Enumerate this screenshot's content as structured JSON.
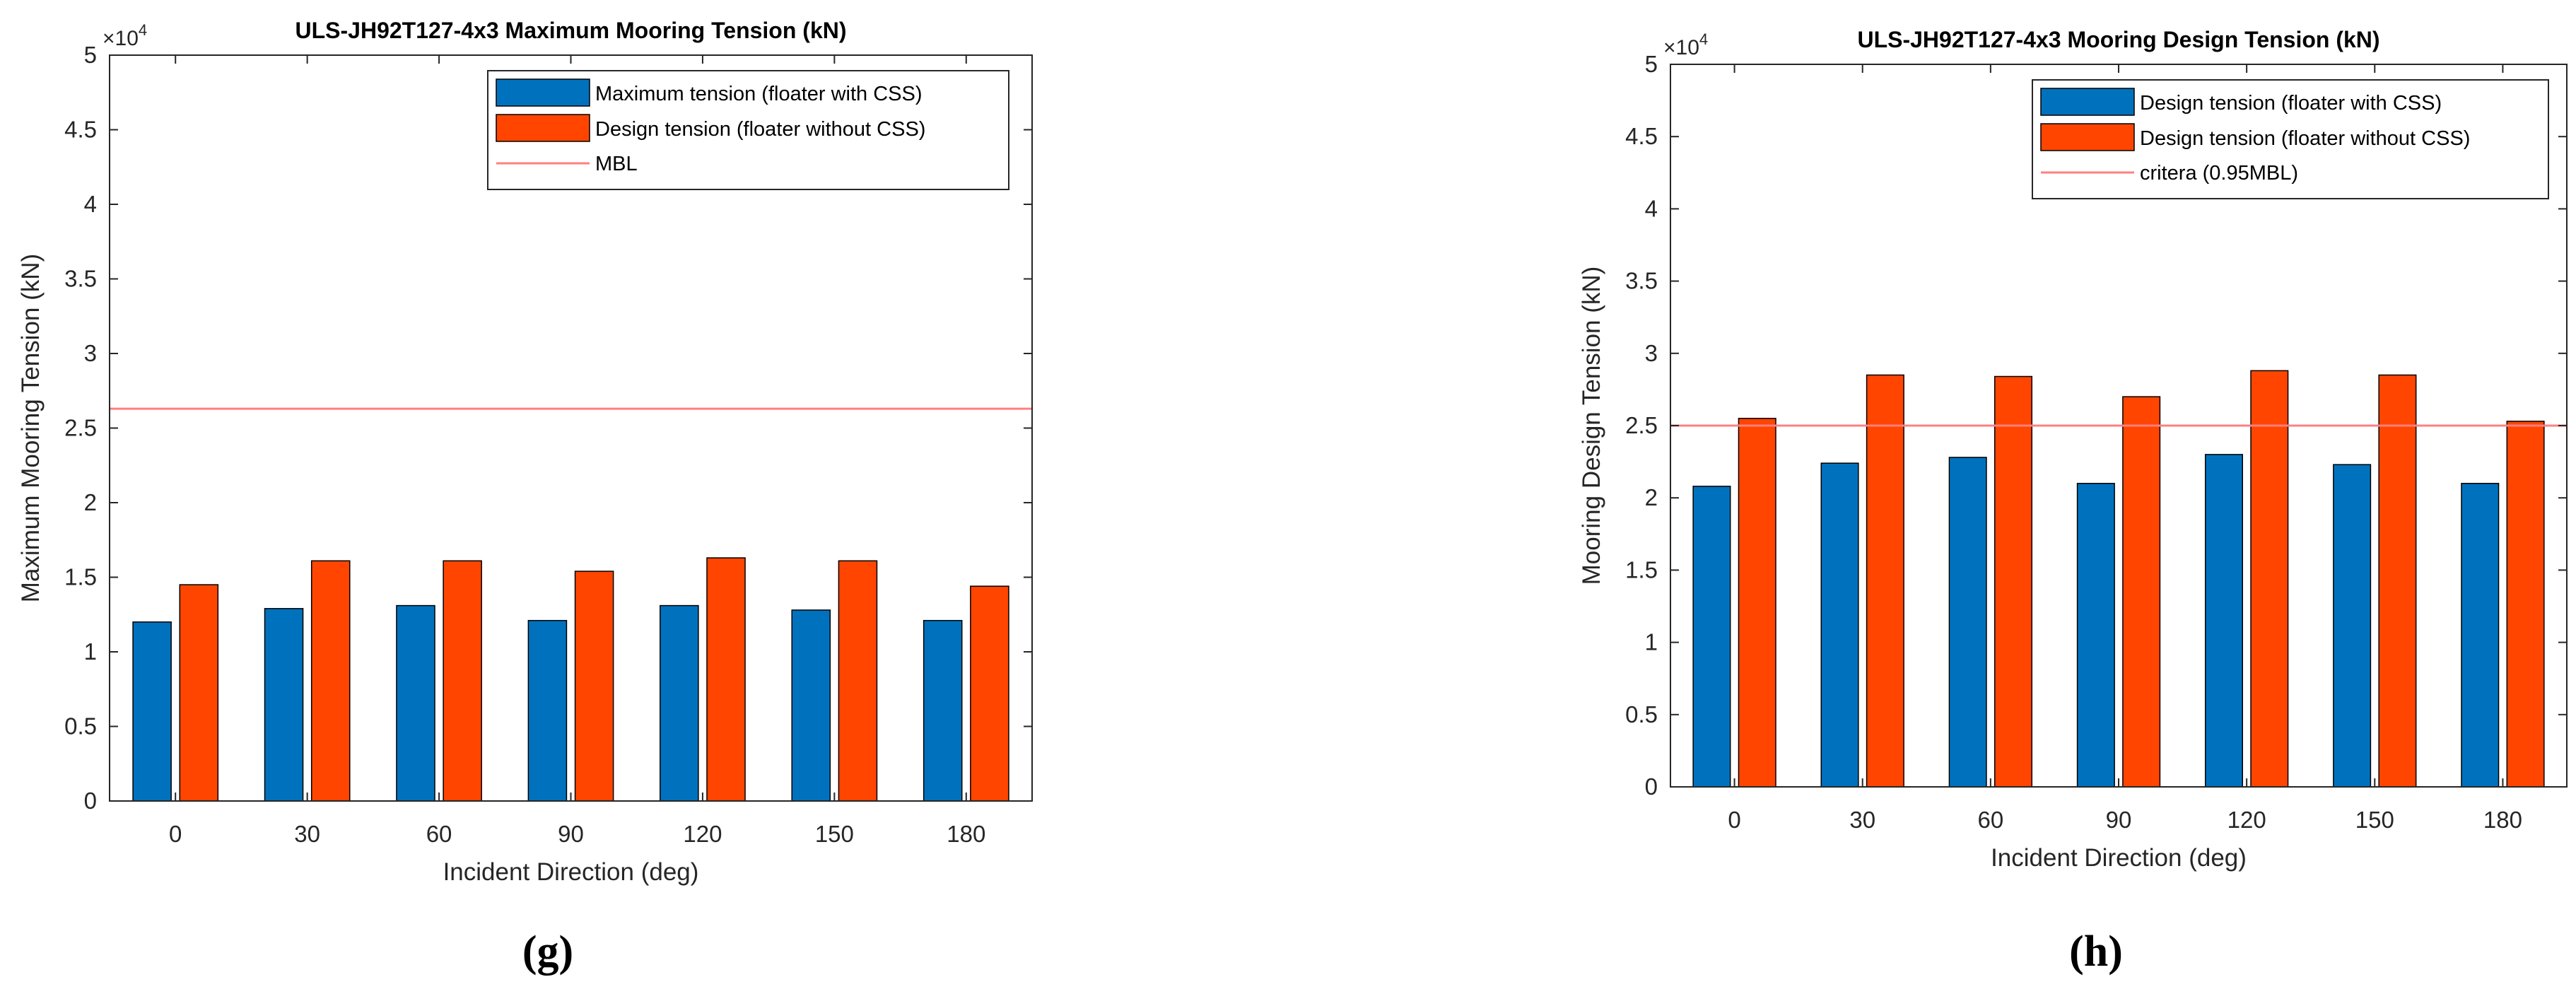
{
  "chart_data": [
    {
      "type": "bar",
      "panel_label": "(g)",
      "title": "ULS-JH92T127-4x3 Maximum Mooring Tension (kN)",
      "xlabel": "Incident Direction (deg)",
      "ylabel": "Maximum Mooring Tension (kN)",
      "y_exponent_label": "×10",
      "y_exponent_power": "4",
      "ylim": [
        0,
        50000
      ],
      "yticks": [
        0,
        5000,
        10000,
        15000,
        20000,
        25000,
        30000,
        35000,
        40000,
        45000,
        50000
      ],
      "ytick_labels": [
        "0",
        "0.5",
        "1",
        "1.5",
        "2",
        "2.5",
        "3",
        "3.5",
        "4",
        "4.5",
        "5"
      ],
      "categories": [
        "0",
        "30",
        "60",
        "90",
        "120",
        "150",
        "180"
      ],
      "series": [
        {
          "name": "Maximum tension (floater with CSS)",
          "color": "#0072BD",
          "values": [
            12000,
            12900,
            13100,
            12100,
            13100,
            12800,
            12100
          ]
        },
        {
          "name": "Design tension (floater without CSS)",
          "color": "#FF4500",
          "values": [
            14500,
            16100,
            16100,
            15400,
            16300,
            16100,
            14400
          ]
        }
      ],
      "reference_line": {
        "name": "MBL",
        "value": 26300,
        "color": "#FF8080"
      },
      "legend_position": "top-right"
    },
    {
      "type": "bar",
      "panel_label": "(h)",
      "title": "ULS-JH92T127-4x3 Mooring Design Tension (kN)",
      "xlabel": "Incident Direction (deg)",
      "ylabel": "Mooring Design Tension (kN)",
      "y_exponent_label": "×10",
      "y_exponent_power": "4",
      "ylim": [
        0,
        50000
      ],
      "yticks": [
        0,
        5000,
        10000,
        15000,
        20000,
        25000,
        30000,
        35000,
        40000,
        45000,
        50000
      ],
      "ytick_labels": [
        "0",
        "0.5",
        "1",
        "1.5",
        "2",
        "2.5",
        "3",
        "3.5",
        "4",
        "4.5",
        "5"
      ],
      "categories": [
        "0",
        "30",
        "60",
        "90",
        "120",
        "150",
        "180"
      ],
      "series": [
        {
          "name": "Design tension (floater with CSS)",
          "color": "#0072BD",
          "values": [
            20800,
            22400,
            22800,
            21000,
            23000,
            22300,
            21000
          ]
        },
        {
          "name": "Design tension (floater without CSS)",
          "color": "#FF4500",
          "values": [
            25500,
            28500,
            28400,
            27000,
            28800,
            28500,
            25300
          ]
        }
      ],
      "reference_line": {
        "name": "critera (0.95MBL)",
        "value": 25000,
        "color": "#FF8080"
      },
      "legend_position": "top-right"
    }
  ]
}
